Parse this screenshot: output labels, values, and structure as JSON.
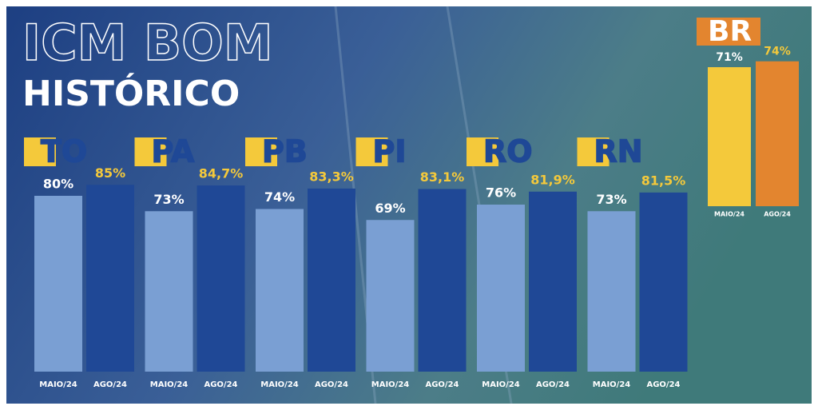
{
  "chart_data": [
    {
      "type": "bar",
      "title": "ICM BOM",
      "subtitle": "HISTÓRICO",
      "categories": [
        "TO",
        "PA",
        "PB",
        "PI",
        "RO",
        "RN"
      ],
      "series": [
        {
          "name": "MAIO/24",
          "color": "#7a9fd3",
          "values": [
            80,
            73,
            74,
            69,
            76,
            73
          ],
          "value_labels": [
            "80%",
            "73%",
            "74%",
            "69%",
            "76%",
            "73%"
          ]
        },
        {
          "name": "AGO/24",
          "color": "#1f4896",
          "values": [
            85,
            84.7,
            83.3,
            83.1,
            81.9,
            81.5
          ],
          "value_labels": [
            "85%",
            "84,7%",
            "83,3%",
            "83,1%",
            "81,9%",
            "81,5%"
          ]
        }
      ]
    },
    {
      "type": "bar",
      "title": "BR",
      "categories": [
        "MAIO/24",
        "AGO/24"
      ],
      "values": [
        71,
        74
      ],
      "value_labels": [
        "71%",
        "74%"
      ],
      "colors": [
        "#f4c93b",
        "#e3852f"
      ]
    }
  ]
}
